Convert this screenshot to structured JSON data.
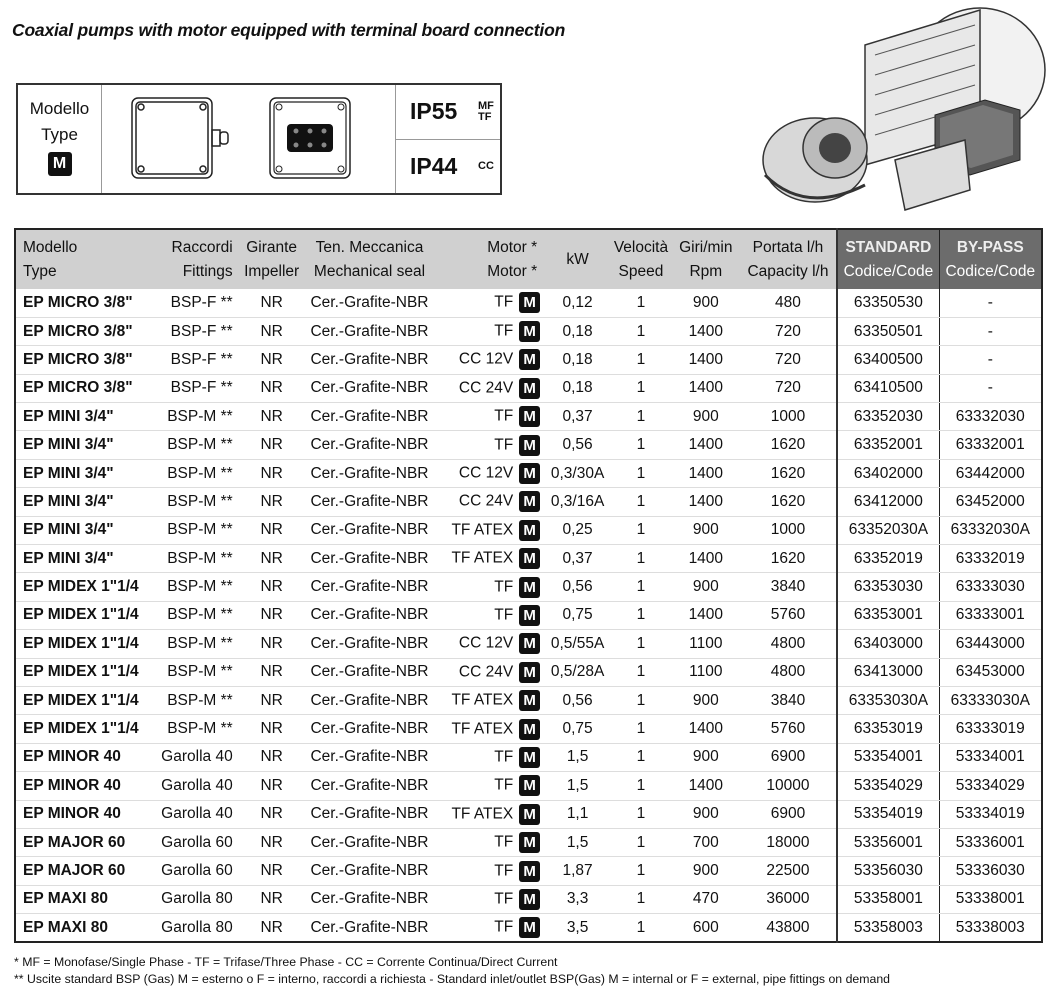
{
  "title": "Coaxial pumps with motor equipped with terminal board connection",
  "infobox": {
    "type_lines": [
      "Modello",
      "Type"
    ],
    "badge": "M",
    "ip": [
      {
        "value": "IP55",
        "notes": [
          "MF",
          "TF"
        ]
      },
      {
        "value": "IP44",
        "notes": [
          "CC"
        ]
      }
    ]
  },
  "table": {
    "headers": [
      [
        "Modello",
        "Type"
      ],
      [
        "Raccordi",
        "Fittings"
      ],
      [
        "Girante",
        "Impeller"
      ],
      [
        "Ten. Meccanica",
        "Mechanical seal"
      ],
      [
        "Motor *",
        "Motor *"
      ],
      [
        "kW"
      ],
      [
        "Velocità",
        "Speed"
      ],
      [
        "Giri/min",
        "Rpm"
      ],
      [
        "Portata l/h",
        "Capacity l/h"
      ],
      [
        "STANDARD",
        "Codice/Code"
      ],
      [
        "BY-PASS",
        "Codice/Code"
      ]
    ],
    "header_colors": {
      "light": "#d0d0d0",
      "dark": "#6c6c6c"
    },
    "rows": [
      [
        "EP MICRO 3/8\"",
        "BSP-F **",
        "NR",
        "Cer.-Grafite-NBR",
        "TF",
        "M",
        "0,12",
        "1",
        "900",
        "480",
        "63350530",
        "-"
      ],
      [
        "EP MICRO 3/8\"",
        "BSP-F **",
        "NR",
        "Cer.-Grafite-NBR",
        "TF",
        "M",
        "0,18",
        "1",
        "1400",
        "720",
        "63350501",
        "-"
      ],
      [
        "EP MICRO 3/8\"",
        "BSP-F **",
        "NR",
        "Cer.-Grafite-NBR",
        "CC 12V",
        "M",
        "0,18",
        "1",
        "1400",
        "720",
        "63400500",
        "-"
      ],
      [
        "EP MICRO 3/8\"",
        "BSP-F **",
        "NR",
        "Cer.-Grafite-NBR",
        "CC 24V",
        "M",
        "0,18",
        "1",
        "1400",
        "720",
        "63410500",
        "-"
      ],
      [
        "EP MINI 3/4\"",
        "BSP-M **",
        "NR",
        "Cer.-Grafite-NBR",
        "TF",
        "M",
        "0,37",
        "1",
        "900",
        "1000",
        "63352030",
        "63332030"
      ],
      [
        "EP MINI 3/4\"",
        "BSP-M **",
        "NR",
        "Cer.-Grafite-NBR",
        "TF",
        "M",
        "0,56",
        "1",
        "1400",
        "1620",
        "63352001",
        "63332001"
      ],
      [
        "EP MINI 3/4\"",
        "BSP-M **",
        "NR",
        "Cer.-Grafite-NBR",
        "CC 12V",
        "M",
        "0,3/30A",
        "1",
        "1400",
        "1620",
        "63402000",
        "63442000"
      ],
      [
        "EP MINI 3/4\"",
        "BSP-M **",
        "NR",
        "Cer.-Grafite-NBR",
        "CC 24V",
        "M",
        "0,3/16A",
        "1",
        "1400",
        "1620",
        "63412000",
        "63452000"
      ],
      [
        "EP MINI 3/4\"",
        "BSP-M **",
        "NR",
        "Cer.-Grafite-NBR",
        "TF ATEX",
        "M",
        "0,25",
        "1",
        "900",
        "1000",
        "63352030A",
        "63332030A"
      ],
      [
        "EP MINI 3/4\"",
        "BSP-M **",
        "NR",
        "Cer.-Grafite-NBR",
        "TF ATEX",
        "M",
        "0,37",
        "1",
        "1400",
        "1620",
        "63352019",
        "63332019"
      ],
      [
        "EP MIDEX 1\"1/4",
        "BSP-M **",
        "NR",
        "Cer.-Grafite-NBR",
        "TF",
        "M",
        "0,56",
        "1",
        "900",
        "3840",
        "63353030",
        "63333030"
      ],
      [
        "EP MIDEX 1\"1/4",
        "BSP-M **",
        "NR",
        "Cer.-Grafite-NBR",
        "TF",
        "M",
        "0,75",
        "1",
        "1400",
        "5760",
        "63353001",
        "63333001"
      ],
      [
        "EP MIDEX 1\"1/4",
        "BSP-M **",
        "NR",
        "Cer.-Grafite-NBR",
        "CC 12V",
        "M",
        "0,5/55A",
        "1",
        "1100",
        "4800",
        "63403000",
        "63443000"
      ],
      [
        "EP MIDEX 1\"1/4",
        "BSP-M **",
        "NR",
        "Cer.-Grafite-NBR",
        "CC 24V",
        "M",
        "0,5/28A",
        "1",
        "1100",
        "4800",
        "63413000",
        "63453000"
      ],
      [
        "EP MIDEX 1\"1/4",
        "BSP-M **",
        "NR",
        "Cer.-Grafite-NBR",
        "TF ATEX",
        "M",
        "0,56",
        "1",
        "900",
        "3840",
        "63353030A",
        "63333030A"
      ],
      [
        "EP MIDEX 1\"1/4",
        "BSP-M **",
        "NR",
        "Cer.-Grafite-NBR",
        "TF ATEX",
        "M",
        "0,75",
        "1",
        "1400",
        "5760",
        "63353019",
        "63333019"
      ],
      [
        "EP MINOR 40",
        "Garolla 40",
        "NR",
        "Cer.-Grafite-NBR",
        "TF",
        "M",
        "1,5",
        "1",
        "900",
        "6900",
        "53354001",
        "53334001"
      ],
      [
        "EP MINOR 40",
        "Garolla 40",
        "NR",
        "Cer.-Grafite-NBR",
        "TF",
        "M",
        "1,5",
        "1",
        "1400",
        "10000",
        "53354029",
        "53334029"
      ],
      [
        "EP MINOR 40",
        "Garolla 40",
        "NR",
        "Cer.-Grafite-NBR",
        "TF ATEX",
        "M",
        "1,1",
        "1",
        "900",
        "6900",
        "53354019",
        "53334019"
      ],
      [
        "EP MAJOR 60",
        "Garolla 60",
        "NR",
        "Cer.-Grafite-NBR",
        "TF",
        "M",
        "1,5",
        "1",
        "700",
        "18000",
        "53356001",
        "53336001"
      ],
      [
        "EP MAJOR 60",
        "Garolla 60",
        "NR",
        "Cer.-Grafite-NBR",
        "TF",
        "M",
        "1,87",
        "1",
        "900",
        "22500",
        "53356030",
        "53336030"
      ],
      [
        "EP MAXI 80",
        "Garolla 80",
        "NR",
        "Cer.-Grafite-NBR",
        "TF",
        "M",
        "3,3",
        "1",
        "470",
        "36000",
        "53358001",
        "53338001"
      ],
      [
        "EP MAXI 80",
        "Garolla 80",
        "NR",
        "Cer.-Grafite-NBR",
        "TF",
        "M",
        "3,5",
        "1",
        "600",
        "43800",
        "53358003",
        "53338003"
      ]
    ]
  },
  "footnotes": [
    "* MF = Monofase/Single Phase - TF = Trifase/Three Phase - CC = Corrente Continua/Direct Current",
    "** Uscite standard BSP (Gas) M = esterno o F = interno, raccordi a richiesta - Standard inlet/outlet BSP(Gas) M = internal or F = external, pipe fittings on demand"
  ]
}
